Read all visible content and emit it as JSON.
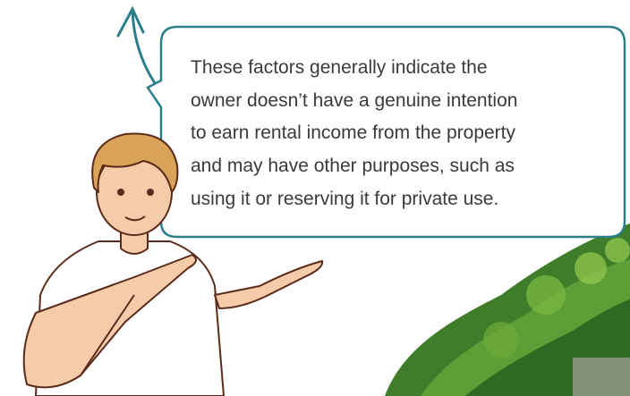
{
  "bubble": {
    "lines": [
      "These factors generally indicate the",
      "owner doesn’t have a genuine intention",
      "to earn rental income from the property",
      "and may have other purposes, such as",
      "using it or reserving it for private use."
    ]
  }
}
